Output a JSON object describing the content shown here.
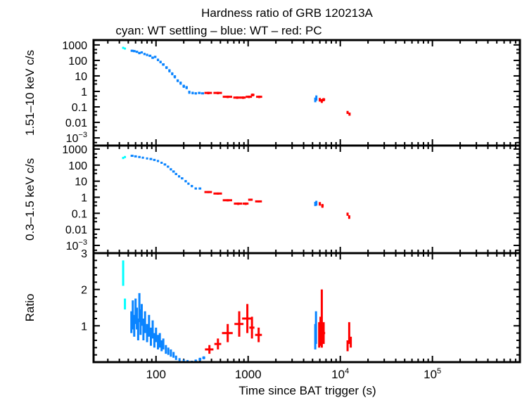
{
  "chart_data": {
    "type": "scatter",
    "title": "Hardness ratio of GRB 120213A",
    "subtitle": "cyan: WT settling – blue: WT – red: PC",
    "xlabel": "Time since BAT trigger (s)",
    "xscale": "log",
    "xlim": [
      21,
      890000
    ],
    "xticks": [
      {
        "v": 100,
        "label": "100"
      },
      {
        "v": 1000,
        "label": "1000"
      },
      {
        "v": 10000,
        "label": "10",
        "sup": "4"
      },
      {
        "v": 100000,
        "label": "10",
        "sup": "5"
      }
    ],
    "colors": {
      "wt_settling": "#00ffff",
      "wt": "#0a84ff",
      "pc": "#ff0000"
    },
    "point_format": [
      "time_s",
      "time_err_s",
      "value",
      "value_err"
    ],
    "panels": [
      {
        "ylabel": "1.51–10 keV c/s",
        "yscale": "log",
        "ylim": [
          0.00032,
          2050
        ],
        "yticks": [
          {
            "v": 1000,
            "label": "1000"
          },
          {
            "v": 100,
            "label": "100"
          },
          {
            "v": 10,
            "label": "10"
          },
          {
            "v": 1,
            "label": "1"
          },
          {
            "v": 0.1,
            "label": "0.1"
          },
          {
            "v": 0.01,
            "label": "0.01"
          },
          {
            "v": 0.001,
            "label": "10",
            "sup": "−3"
          }
        ],
        "series": {
          "wt_settling": [
            [
              44,
              1,
              650,
              60
            ],
            [
              46,
              1,
              580,
              60
            ]
          ],
          "wt": [
            [
              55,
              2,
              420,
              60
            ],
            [
              58,
              2,
              400,
              60
            ],
            [
              62,
              2,
              360,
              50
            ],
            [
              66,
              2,
              300,
              50
            ],
            [
              70,
              2,
              330,
              50
            ],
            [
              75,
              2,
              260,
              40
            ],
            [
              80,
              2,
              230,
              40
            ],
            [
              86,
              3,
              200,
              30
            ],
            [
              92,
              3,
              150,
              25
            ],
            [
              98,
              3,
              170,
              25
            ],
            [
              105,
              3,
              110,
              20
            ],
            [
              112,
              3,
              80,
              15
            ],
            [
              120,
              4,
              55,
              10
            ],
            [
              130,
              4,
              35,
              7
            ],
            [
              140,
              4,
              22,
              5
            ],
            [
              150,
              4,
              14,
              3
            ],
            [
              160,
              5,
              9,
              2
            ],
            [
              172,
              5,
              5,
              1
            ],
            [
              185,
              5,
              3.5,
              0.8
            ],
            [
              200,
              6,
              2.2,
              0.5
            ],
            [
              215,
              6,
              1.8,
              0.4
            ],
            [
              230,
              6,
              0.9,
              0.2
            ],
            [
              250,
              7,
              0.8,
              0.15
            ],
            [
              270,
              8,
              0.75,
              0.12
            ],
            [
              295,
              10,
              0.8,
              0.12
            ],
            [
              320,
              12,
              0.75,
              0.1
            ],
            [
              5350,
              80,
              0.3,
              0.1
            ],
            [
              5500,
              80,
              0.4,
              0.15
            ]
          ],
          "pc": [
            [
              370,
              35,
              0.8,
              0.15
            ],
            [
              470,
              50,
              0.8,
              0.15
            ],
            [
              600,
              70,
              0.45,
              0.08
            ],
            [
              760,
              70,
              0.4,
              0.07
            ],
            [
              880,
              60,
              0.4,
              0.07
            ],
            [
              1020,
              80,
              0.45,
              0.08
            ],
            [
              1120,
              50,
              0.6,
              0.12
            ],
            [
              1320,
              100,
              0.45,
              0.08
            ],
            [
              6000,
              150,
              0.3,
              0.08
            ],
            [
              6300,
              150,
              0.25,
              0.07
            ],
            [
              6600,
              250,
              0.3,
              0.07
            ],
            [
              12000,
              300,
              0.045,
              0.01
            ],
            [
              12600,
              300,
              0.035,
              0.008
            ]
          ]
        }
      },
      {
        "ylabel": "0.3–1.5 keV c/s",
        "yscale": "log",
        "ylim": [
          0.00033,
          1650
        ],
        "yticks": [
          {
            "v": 1000,
            "label": "1000"
          },
          {
            "v": 100,
            "label": "100"
          },
          {
            "v": 10,
            "label": "10"
          },
          {
            "v": 1,
            "label": "1"
          },
          {
            "v": 0.1,
            "label": "0.1"
          },
          {
            "v": 0.01,
            "label": "0.01"
          },
          {
            "v": 0.001,
            "label": "10",
            "sup": "−3"
          }
        ],
        "series": {
          "wt_settling": [
            [
              44,
              1,
              280,
              40
            ],
            [
              46,
              1,
              320,
              40
            ]
          ],
          "wt": [
            [
              55,
              2,
              380,
              50
            ],
            [
              60,
              2,
              350,
              40
            ],
            [
              66,
              2,
              320,
              40
            ],
            [
              72,
              2,
              290,
              35
            ],
            [
              80,
              2,
              260,
              30
            ],
            [
              88,
              3,
              240,
              30
            ],
            [
              96,
              3,
              210,
              25
            ],
            [
              105,
              3,
              180,
              20
            ],
            [
              115,
              3,
              140,
              18
            ],
            [
              125,
              4,
              110,
              15
            ],
            [
              135,
              4,
              80,
              10
            ],
            [
              145,
              4,
              55,
              8
            ],
            [
              155,
              5,
              40,
              6
            ],
            [
              165,
              5,
              28,
              4
            ],
            [
              178,
              5,
              20,
              3
            ],
            [
              192,
              6,
              15,
              2
            ],
            [
              210,
              6,
              10,
              1.5
            ],
            [
              225,
              6,
              7,
              1
            ],
            [
              245,
              7,
              5,
              0.8
            ],
            [
              270,
              8,
              3.5,
              0.5
            ],
            [
              300,
              10,
              3.5,
              0.5
            ],
            [
              5350,
              80,
              0.4,
              0.12
            ],
            [
              5500,
              80,
              0.45,
              0.15
            ]
          ],
          "pc": [
            [
              370,
              35,
              2.1,
              0.3
            ],
            [
              470,
              50,
              1.7,
              0.25
            ],
            [
              600,
              70,
              0.65,
              0.1
            ],
            [
              780,
              80,
              0.4,
              0.07
            ],
            [
              940,
              70,
              0.4,
              0.07
            ],
            [
              1060,
              60,
              0.7,
              0.1
            ],
            [
              1300,
              110,
              0.55,
              0.08
            ],
            [
              6000,
              150,
              0.4,
              0.1
            ],
            [
              6400,
              200,
              0.3,
              0.08
            ],
            [
              12000,
              300,
              0.09,
              0.02
            ],
            [
              12500,
              300,
              0.06,
              0.015
            ]
          ]
        }
      },
      {
        "ylabel": "Ratio",
        "yscale": "linear",
        "ylim": [
          0,
          3
        ],
        "yticks": [
          {
            "v": 1,
            "label": "1"
          },
          {
            "v": 2,
            "label": "2"
          },
          {
            "v": 3,
            "label": "3"
          }
        ],
        "series": {
          "wt_settling": [
            [
              44,
              0.5,
              2.45,
              0.35
            ],
            [
              46,
              0.5,
              1.6,
              0.15
            ]
          ],
          "wt": [
            [
              54,
              1,
              1.1,
              0.3
            ],
            [
              56,
              1,
              1.3,
              0.4
            ],
            [
              58,
              1,
              1.0,
              0.3
            ],
            [
              60,
              1,
              1.4,
              0.35
            ],
            [
              62,
              1,
              1.2,
              0.3
            ],
            [
              64,
              1,
              0.9,
              0.3
            ],
            [
              66,
              1,
              1.5,
              0.4
            ],
            [
              68,
              1,
              1.1,
              0.35
            ],
            [
              70,
              1,
              1.3,
              0.3
            ],
            [
              73,
              1,
              0.9,
              0.3
            ],
            [
              76,
              1,
              1.1,
              0.3
            ],
            [
              80,
              1,
              0.8,
              0.25
            ],
            [
              84,
              1,
              1.0,
              0.3
            ],
            [
              88,
              1,
              0.7,
              0.25
            ],
            [
              92,
              1,
              0.9,
              0.25
            ],
            [
              96,
              1,
              0.6,
              0.2
            ],
            [
              100,
              1,
              0.75,
              0.2
            ],
            [
              105,
              1,
              0.55,
              0.2
            ],
            [
              110,
              1,
              0.6,
              0.2
            ],
            [
              115,
              1,
              0.45,
              0.15
            ],
            [
              120,
              2,
              0.5,
              0.15
            ],
            [
              128,
              2,
              0.35,
              0.12
            ],
            [
              136,
              2,
              0.3,
              0.1
            ],
            [
              145,
              2,
              0.25,
              0.1
            ],
            [
              155,
              2,
              0.2,
              0.08
            ],
            [
              165,
              3,
              0.12,
              0.06
            ],
            [
              180,
              3,
              0.07,
              0.04
            ],
            [
              200,
              4,
              0.04,
              0.03
            ],
            [
              220,
              5,
              0.03,
              0.02
            ],
            [
              245,
              6,
              0.01,
              0.02
            ],
            [
              270,
              8,
              0.04,
              0.03
            ],
            [
              300,
              10,
              0.08,
              0.04
            ],
            [
              330,
              12,
              0.12,
              0.04
            ],
            [
              5350,
              60,
              0.7,
              0.35
            ],
            [
              5450,
              60,
              0.95,
              0.45
            ]
          ],
          "pc": [
            [
              380,
              40,
              0.35,
              0.12
            ],
            [
              470,
              40,
              0.5,
              0.15
            ],
            [
              600,
              80,
              0.8,
              0.25
            ],
            [
              800,
              90,
              1.05,
              0.35
            ],
            [
              980,
              120,
              1.2,
              0.4
            ],
            [
              1100,
              70,
              0.95,
              0.3
            ],
            [
              1300,
              110,
              0.75,
              0.2
            ],
            [
              5900,
              100,
              0.75,
              0.35
            ],
            [
              6100,
              100,
              0.85,
              0.4
            ],
            [
              6300,
              100,
              1.2,
              0.8
            ],
            [
              6600,
              250,
              0.8,
              0.3
            ],
            [
              12000,
              250,
              0.45,
              0.15
            ],
            [
              12500,
              250,
              0.8,
              0.3
            ],
            [
              13000,
              250,
              0.55,
              0.15
            ]
          ]
        }
      }
    ]
  }
}
